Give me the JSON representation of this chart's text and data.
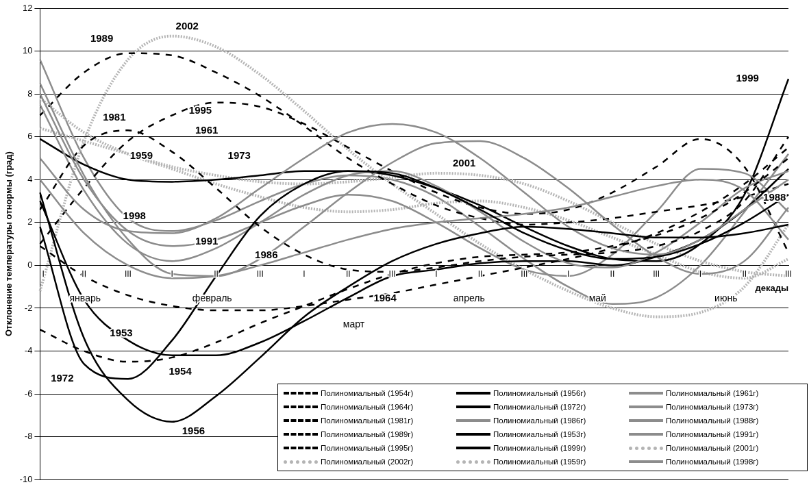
{
  "chart_data": {
    "type": "line",
    "xlabel": "декады",
    "ylabel": "Отклонение температуры отнормы (град)",
    "categories": [
      "I",
      "II",
      "III",
      "I",
      "II",
      "III",
      "I",
      "II",
      "III",
      "I",
      "II",
      "III",
      "I",
      "II",
      "III",
      "I",
      "II",
      "III"
    ],
    "ylim": [
      -10,
      12
    ],
    "yticks": [
      -10,
      -8,
      -6,
      -4,
      -2,
      0,
      2,
      4,
      6,
      8,
      10,
      12
    ],
    "grid": "y",
    "marker": "none",
    "legend": "bottom right",
    "series": [
      {
        "name": "Полиномиальный (1954г)",
        "color": "#000000",
        "line_style": "dashed",
        "values": [
          -3.0,
          -4.0,
          -4.5,
          -4.3,
          -3.6,
          -2.7,
          -1.9,
          -1.1,
          -0.4,
          0.1,
          0.4,
          0.5,
          0.6,
          0.9,
          1.4,
          2.2,
          3.4,
          5.0
        ]
      },
      {
        "name": "Полиномиальный (1956г)",
        "color": "#000000",
        "line_style": "solid",
        "values": [
          3.4,
          -3.4,
          -6.3,
          -7.3,
          -6.1,
          -4.3,
          -2.4,
          -1.0,
          0.2,
          1.0,
          1.5,
          1.8,
          1.7,
          1.5,
          1.3,
          1.3,
          1.5,
          1.9
        ]
      },
      {
        "name": "Полиномиальный (1961г)",
        "color": "#8c8c8c",
        "line_style": "solid",
        "values": [
          5.0,
          2.6,
          1.6,
          1.5,
          2.2,
          3.6,
          5.0,
          6.2,
          6.6,
          6.2,
          5.0,
          3.4,
          1.8,
          0.8,
          0.5,
          1.2,
          2.6,
          4.0
        ]
      },
      {
        "name": "Полиномиальный (1964г)",
        "color": "#000000",
        "line_style": "dashed",
        "values": [
          0.9,
          -0.5,
          -1.4,
          -1.9,
          -2.1,
          -2.1,
          -1.9,
          -1.6,
          -1.3,
          -0.9,
          -0.5,
          -0.1,
          0.3,
          0.8,
          1.5,
          2.5,
          3.8,
          5.5
        ]
      },
      {
        "name": "Полиномиальный (1972г)",
        "color": "#000000",
        "line_style": "solid",
        "values": [
          1.8,
          -4.6,
          -5.3,
          -3.5,
          -0.5,
          2.3,
          3.8,
          4.4,
          4.3,
          3.6,
          2.6,
          1.5,
          0.7,
          0.3,
          0.4,
          1.0,
          2.0,
          3.3
        ]
      },
      {
        "name": "Полиномиальный (1973г)",
        "color": "#8c8c8c",
        "line_style": "solid",
        "values": [
          8.5,
          4.2,
          1.2,
          -0.4,
          -0.5,
          0.3,
          1.8,
          3.4,
          4.8,
          5.7,
          5.8,
          5.0,
          3.6,
          1.9,
          0.4,
          -0.4,
          0.2,
          2.7
        ]
      },
      {
        "name": "Полиномиальный (1981г)",
        "color": "#000000",
        "line_style": "dashed",
        "values": [
          2.6,
          5.6,
          6.3,
          5.3,
          3.6,
          1.8,
          0.5,
          -0.2,
          -0.3,
          -0.1,
          0.2,
          0.4,
          0.5,
          0.6,
          0.9,
          1.6,
          3.0,
          6.0
        ]
      },
      {
        "name": "Полиномиальный (1986г)",
        "color": "#8c8c8c",
        "line_style": "solid",
        "values": [
          4.0,
          1.5,
          0.0,
          -0.6,
          -0.5,
          0.0,
          0.6,
          1.2,
          1.7,
          2.0,
          2.2,
          2.4,
          2.7,
          3.2,
          3.7,
          4.0,
          3.5,
          1.2
        ]
      },
      {
        "name": "Полиномиальный (1988г)",
        "color": "#8c8c8c",
        "line_style": "solid",
        "values": [
          7.5,
          3.5,
          1.0,
          0.2,
          0.8,
          2.0,
          3.3,
          4.2,
          4.4,
          3.7,
          2.5,
          1.1,
          0.1,
          -0.1,
          0.6,
          2.0,
          3.6,
          4.4
        ]
      },
      {
        "name": "Полиномиальный (1989г)",
        "color": "#000000",
        "line_style": "dashed",
        "values": [
          7.0,
          9.0,
          9.9,
          9.8,
          9.0,
          7.9,
          6.5,
          5.0,
          3.8,
          2.8,
          2.2,
          1.9,
          2.0,
          2.2,
          2.5,
          2.8,
          3.2,
          3.8
        ]
      },
      {
        "name": "Полиномиальный (1953г)",
        "color": "#000000",
        "line_style": "solid",
        "values": [
          3.0,
          -1.6,
          -3.5,
          -4.2,
          -4.2,
          -3.6,
          -2.6,
          -1.5,
          -0.5,
          -0.2,
          0.1,
          0.2,
          0.2,
          0.0,
          0.4,
          1.2,
          2.6,
          4.5
        ]
      },
      {
        "name": "Полиномиальный (1991г)",
        "color": "#8c8c8c",
        "line_style": "solid",
        "values": [
          8.0,
          4.0,
          1.6,
          0.9,
          1.2,
          2.0,
          2.8,
          3.3,
          3.0,
          2.0,
          0.8,
          -0.2,
          -0.5,
          0.5,
          2.5,
          4.5,
          4.3,
          2.5
        ]
      },
      {
        "name": "Полиномиальный (1995г)",
        "color": "#000000",
        "line_style": "dashed",
        "values": [
          1.0,
          3.6,
          5.8,
          7.0,
          7.6,
          7.4,
          6.6,
          5.5,
          4.4,
          3.4,
          2.7,
          2.4,
          2.6,
          3.4,
          4.6,
          5.9,
          4.6,
          0.6
        ]
      },
      {
        "name": "Полиномиальный (1999г)",
        "color": "#000000",
        "line_style": "solid",
        "values": [
          5.9,
          4.7,
          4.0,
          3.9,
          4.0,
          4.2,
          4.4,
          4.4,
          4.2,
          3.6,
          2.8,
          1.8,
          0.9,
          0.3,
          0.2,
          1.0,
          3.3,
          8.7
        ]
      },
      {
        "name": "Полиномиальный (2001г)",
        "color": "#b4b4b4",
        "line_style": "dotted",
        "values": [
          6.4,
          5.8,
          5.2,
          4.6,
          4.2,
          3.9,
          3.8,
          3.9,
          4.1,
          4.3,
          4.2,
          3.8,
          3.0,
          2.0,
          1.0,
          0.2,
          -0.3,
          -0.5
        ]
      },
      {
        "name": "Полиномиальный (2002г)",
        "color": "#b4b4b4",
        "line_style": "dotted",
        "values": [
          -1.2,
          5.8,
          9.6,
          10.7,
          10.2,
          8.9,
          7.2,
          5.4,
          3.8,
          2.4,
          1.0,
          -0.2,
          -1.2,
          -2.0,
          -2.4,
          -2.2,
          -1.0,
          1.9
        ]
      },
      {
        "name": "Полиномиальный (1959г)",
        "color": "#b4b4b4",
        "line_style": "dotted",
        "values": [
          7.8,
          6.2,
          5.2,
          4.5,
          3.8,
          3.2,
          2.7,
          2.5,
          2.6,
          2.9,
          3.0,
          2.7,
          2.1,
          1.3,
          0.5,
          -0.3,
          -0.6,
          0.3
        ]
      },
      {
        "name": "Полиномиальный (1998г)",
        "color": "#8c8c8c",
        "line_style": "solid",
        "values": [
          9.6,
          5.0,
          2.2,
          1.6,
          2.1,
          3.0,
          3.8,
          4.2,
          4.0,
          3.2,
          1.8,
          0.3,
          -1.0,
          -1.8,
          -1.5,
          0.0,
          2.5,
          5.2
        ]
      }
    ],
    "annotations": [
      "2002",
      "1989",
      "1981",
      "1995",
      "1961",
      "1959",
      "1973",
      "1998",
      "1991",
      "1986",
      "2001",
      "1999",
      "1988",
      "1964",
      "1953",
      "1954",
      "1972",
      "1956",
      "январь",
      "февраль",
      "март",
      "апрель",
      "май",
      "июнь"
    ]
  }
}
